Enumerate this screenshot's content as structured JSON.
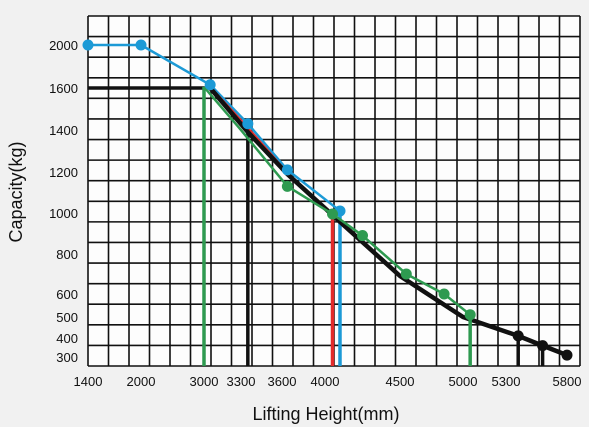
{
  "chart_data": {
    "type": "line",
    "xlabel": "Lifting Height(mm)",
    "ylabel": "Capacity(kg)",
    "x_ticks": [
      {
        "value": 1400,
        "label": "1400"
      },
      {
        "value": 2000,
        "label": "2000"
      },
      {
        "value": 3000,
        "label": "3000"
      },
      {
        "value": 3300,
        "label": "3300"
      },
      {
        "value": 3600,
        "label": "3600"
      },
      {
        "value": 4000,
        "label": "4000"
      },
      {
        "value": 4500,
        "label": "4500"
      },
      {
        "value": 5000,
        "label": "5000"
      },
      {
        "value": 5300,
        "label": "5300"
      },
      {
        "value": 5800,
        "label": "5800"
      }
    ],
    "y_ticks": [
      {
        "value": 300,
        "label": "300"
      },
      {
        "value": 400,
        "label": "400"
      },
      {
        "value": 500,
        "label": "500"
      },
      {
        "value": 600,
        "label": "600"
      },
      {
        "value": 800,
        "label": "800"
      },
      {
        "value": 1000,
        "label": "1000"
      },
      {
        "value": 1200,
        "label": "1200"
      },
      {
        "value": 1400,
        "label": "1400"
      },
      {
        "value": 1600,
        "label": "1600"
      },
      {
        "value": 2000,
        "label": "2000"
      }
    ],
    "grid": true,
    "series": [
      {
        "color": "#1c9ad6",
        "points": [
          [
            1400,
            2000
          ],
          [
            2000,
            2000
          ],
          [
            3050,
            1630
          ],
          [
            3350,
            1430
          ],
          [
            3650,
            1210
          ],
          [
            4100,
            1010
          ]
        ],
        "drop_to": 4100,
        "markers": true
      },
      {
        "color": "#e32b2b",
        "points": [
          [
            3050,
            1610
          ],
          [
            3350,
            1410
          ],
          [
            3650,
            1195
          ],
          [
            4050,
            990
          ]
        ],
        "drop_to": 4050,
        "markers": false
      },
      {
        "color": "#111111",
        "points": [
          [
            3050,
            1600
          ],
          [
            3350,
            1390
          ],
          [
            3650,
            1190
          ],
          [
            4050,
            990
          ],
          [
            4500,
            690
          ],
          [
            5000,
            500
          ],
          [
            5400,
            410
          ],
          [
            5600,
            360
          ],
          [
            5800,
            310
          ]
        ],
        "drop_to": 3350,
        "hline": 1600,
        "extra_drops": [
          5400,
          5600
        ],
        "markers": true,
        "marker_from": 6
      },
      {
        "color": "#2e9a50",
        "points": [
          [
            3000,
            1610
          ],
          [
            3300,
            1400
          ],
          [
            3650,
            1130
          ],
          [
            4050,
            995
          ],
          [
            4250,
            890
          ],
          [
            4550,
            700
          ],
          [
            4850,
            600
          ],
          [
            5050,
            510
          ]
        ],
        "drop_to": 3000,
        "drop_to_2": 5050,
        "markers": true,
        "marker_from": 2
      }
    ]
  }
}
